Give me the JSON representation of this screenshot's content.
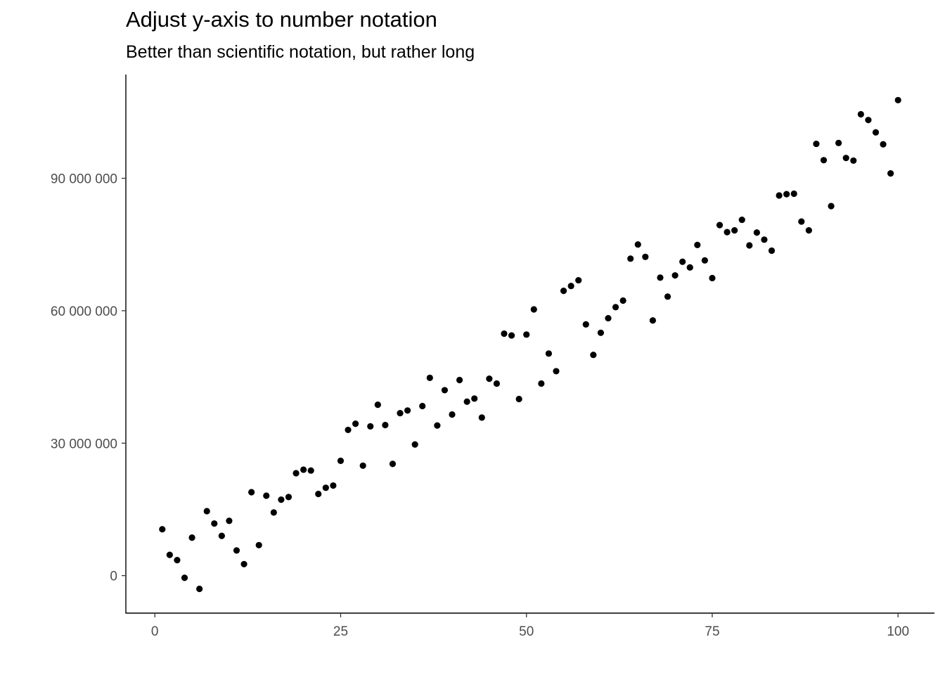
{
  "chart_data": {
    "type": "scatter",
    "title": "Adjust y-axis to number notation",
    "subtitle": "Better than scientific notation, but rather long",
    "xlabel": "",
    "ylabel": "",
    "xlim": [
      -3.9,
      104.9
    ],
    "ylim": [
      -8500000,
      113500000
    ],
    "grid": false,
    "x_ticks": [
      0,
      25,
      50,
      75,
      100
    ],
    "x_tick_labels": [
      "0",
      "25",
      "50",
      "75",
      "100"
    ],
    "y_ticks": [
      0,
      30000000,
      60000000,
      90000000
    ],
    "y_tick_labels": [
      "0",
      "30 000 000",
      "60 000 000",
      "90 000 000"
    ],
    "colors": {
      "points": "#000000",
      "axis": "#000000",
      "tick_text": "#4d4d4d"
    },
    "x": [
      1,
      2,
      3,
      4,
      5,
      6,
      7,
      8,
      9,
      10,
      11,
      12,
      13,
      14,
      15,
      16,
      17,
      18,
      19,
      20,
      21,
      22,
      23,
      24,
      25,
      26,
      27,
      28,
      29,
      30,
      31,
      32,
      33,
      34,
      35,
      36,
      37,
      38,
      39,
      40,
      41,
      42,
      43,
      44,
      45,
      46,
      47,
      48,
      49,
      50,
      51,
      52,
      53,
      54,
      55,
      56,
      57,
      58,
      59,
      60,
      61,
      62,
      63,
      64,
      65,
      66,
      67,
      68,
      69,
      70,
      71,
      72,
      73,
      74,
      75,
      76,
      77,
      78,
      79,
      80,
      81,
      82,
      83,
      84,
      85,
      86,
      87,
      88,
      89,
      90,
      91,
      92,
      93,
      94,
      95,
      96,
      97,
      98,
      99,
      100
    ],
    "y": [
      10500000,
      4700000,
      3500000,
      -500000,
      8600000,
      -3000000,
      14600000,
      11800000,
      9000000,
      12400000,
      5700000,
      2600000,
      18900000,
      6900000,
      18100000,
      14300000,
      17200000,
      17800000,
      23200000,
      24000000,
      23800000,
      18500000,
      19900000,
      20400000,
      26000000,
      33000000,
      34400000,
      24900000,
      33800000,
      38700000,
      34100000,
      25300000,
      36800000,
      37400000,
      29700000,
      38400000,
      44800000,
      34000000,
      42000000,
      36500000,
      44300000,
      39400000,
      40100000,
      35800000,
      44600000,
      43500000,
      54800000,
      54400000,
      40000000,
      54600000,
      60300000,
      43500000,
      50300000,
      46300000,
      64500000,
      65600000,
      66900000,
      56900000,
      50000000,
      55000000,
      58300000,
      60800000,
      62300000,
      71800000,
      75000000,
      72200000,
      57800000,
      67500000,
      63200000,
      68000000,
      71100000,
      69800000,
      74900000,
      71400000,
      67400000,
      79400000,
      77800000,
      78200000,
      80600000,
      74800000,
      77700000,
      76100000,
      73600000,
      86100000,
      86400000,
      86500000,
      80200000,
      78200000,
      97800000,
      94100000,
      83700000,
      98000000,
      94600000,
      94000000,
      104500000,
      103200000,
      100400000,
      97700000,
      91100000,
      107700000
    ]
  }
}
